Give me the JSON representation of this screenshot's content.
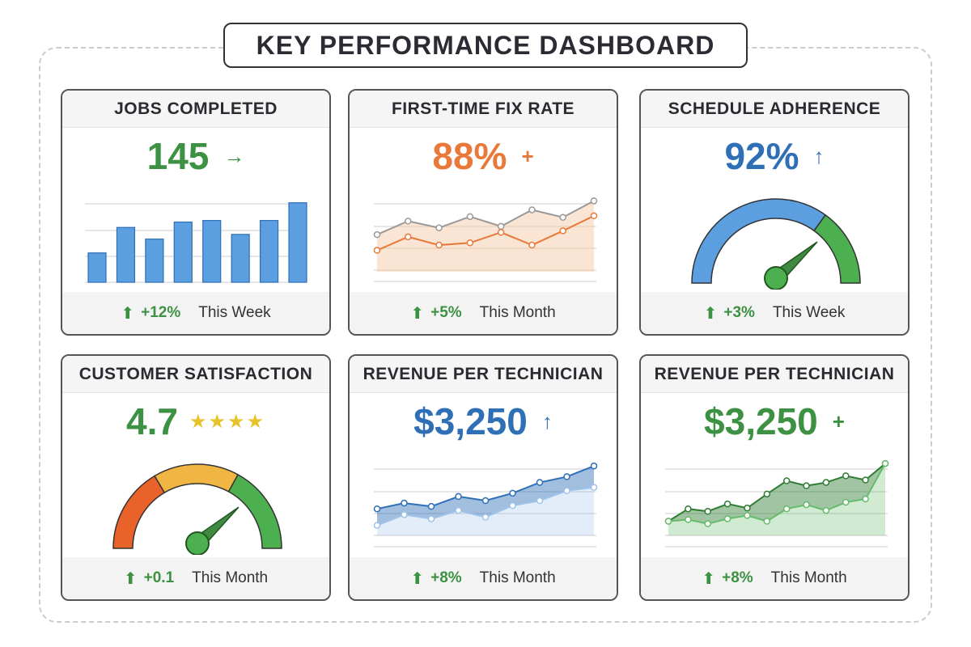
{
  "title": "KEY PERFORMANCE DASHBOARD",
  "colors": {
    "green": "#3d9142",
    "orange": "#e8793a",
    "blue": "#2f6fb5",
    "gray": "#999999",
    "star": "#e8c22a"
  },
  "cards": [
    {
      "title": "JOBS COMPLETED",
      "value": "145",
      "trend_icon": "arrow-right-icon",
      "trend_glyph": "→",
      "change": "+12%",
      "period": "This Week",
      "value_color": "#3d9142"
    },
    {
      "title": "FIRST-TIME FIX RATE",
      "value": "88%",
      "trend_icon": "plus-icon",
      "trend_glyph": "+",
      "change": "+5%",
      "period": "This Month",
      "value_color": "#e8793a"
    },
    {
      "title": "SCHEDULE ADHERENCE",
      "value": "92%",
      "trend_icon": "arrow-up-icon",
      "trend_glyph": "↑",
      "change": "+3%",
      "period": "This Week",
      "value_color": "#2f6fb5"
    },
    {
      "title": "CUSTOMER SATISFACTION",
      "value": "4.7",
      "stars": "★★★★",
      "change": "+0.1",
      "period": "This Month",
      "value_color": "#3d9142"
    },
    {
      "title": "REVENUE PER TECHNICIAN",
      "value": "$3,250",
      "trend_icon": "arrow-up-icon",
      "trend_glyph": "↑",
      "change": "+8%",
      "period": "This Month",
      "value_color": "#2f6fb5"
    },
    {
      "title": "REVENUE PER TECHNICIAN",
      "value": "$3,250",
      "trend_icon": "plus-icon",
      "trend_glyph": "+",
      "change": "+8%",
      "period": "This Month",
      "value_color": "#3d9142"
    }
  ],
  "chart_data": [
    {
      "type": "bar",
      "values": [
        38,
        71,
        56,
        78,
        80,
        62,
        80,
        103
      ],
      "ylim": [
        0,
        110
      ],
      "color": "#5b9fe0"
    },
    {
      "type": "line",
      "series": [
        {
          "values": [
            56,
            74,
            65,
            80,
            67,
            89,
            79,
            101
          ],
          "color": "#999999"
        },
        {
          "values": [
            35,
            53,
            42,
            45,
            59,
            42,
            61,
            81
          ],
          "color": "#e8793a"
        }
      ],
      "ylim": [
        0,
        110
      ]
    },
    {
      "type": "gauge",
      "value": 0.75,
      "segments": [
        {
          "to": 0.7,
          "color": "#5b9fe0"
        },
        {
          "to": 1,
          "color": "#4caf50"
        }
      ]
    },
    {
      "type": "gauge",
      "value": 0.75,
      "segments": [
        {
          "to": 0.33,
          "color": "#e8622a"
        },
        {
          "to": 0.66,
          "color": "#f0b542"
        },
        {
          "to": 1,
          "color": "#4caf50"
        }
      ]
    },
    {
      "type": "area",
      "series": [
        {
          "values": [
            40,
            47,
            43,
            55,
            50,
            59,
            72,
            79,
            92
          ],
          "color": "#2f6fb5"
        },
        {
          "values": [
            20,
            33,
            28,
            38,
            30,
            44,
            50,
            62,
            66
          ],
          "color": "#9ec3ea"
        }
      ],
      "ylim": [
        0,
        100
      ]
    },
    {
      "type": "area",
      "series": [
        {
          "values": [
            25,
            40,
            37,
            46,
            41,
            58,
            74,
            68,
            72,
            80,
            75,
            95
          ],
          "color": "#2e7d32"
        },
        {
          "values": [
            25,
            27,
            22,
            28,
            32,
            25,
            40,
            45,
            38,
            48,
            52,
            95
          ],
          "color": "#66bb6a"
        }
      ],
      "ylim": [
        0,
        100
      ]
    }
  ]
}
